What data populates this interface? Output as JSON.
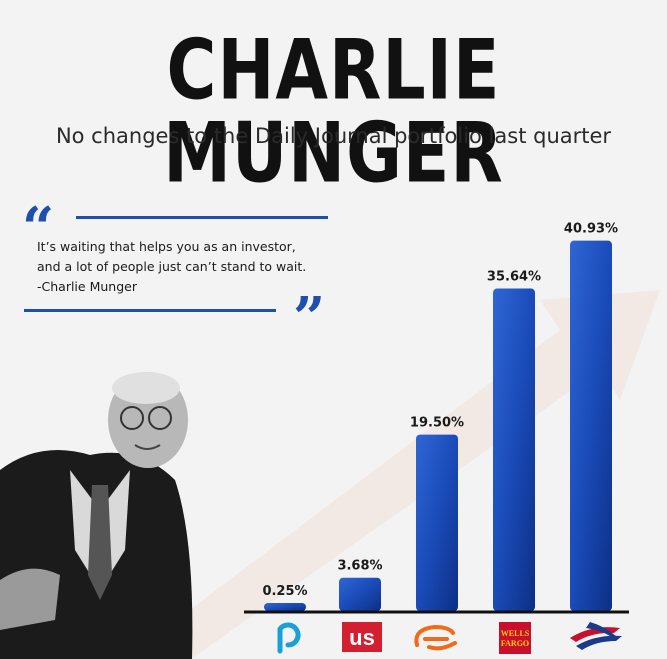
{
  "header": {
    "title": "CHARLIE MUNGER",
    "subtitle": "No changes to the Daily Journal portfolio last quarter"
  },
  "quote": {
    "open_mark": "“",
    "close_mark": "”",
    "lines": [
      "It’s waiting that helps you as an investor,",
      "and a lot of people just can’t stand to wait.",
      "-Charlie Munger"
    ]
  },
  "colors": {
    "accent": "#1e4fb0",
    "bar_dark": "#0d2f85",
    "bar_light": "#2f66d4"
  },
  "chart_data": {
    "type": "bar",
    "categories": [
      "Pacific Health Care",
      "US Bancorp",
      "Alibaba",
      "Wells Fargo",
      "Bank of America"
    ],
    "values": [
      0.25,
      3.68,
      19.5,
      35.64,
      40.93
    ],
    "data_labels": [
      "0.25%",
      "3.68%",
      "19.50%",
      "35.64%",
      "40.93%"
    ],
    "category_icons": [
      "pacific-logo-icon",
      "us-bancorp-logo-icon",
      "alibaba-logo-icon",
      "wells-fargo-logo-icon",
      "bank-of-america-logo-icon"
    ],
    "logo_text": {
      "us_bancorp": "us",
      "wells_fargo_line1": "WELLS",
      "wells_fargo_line2": "FARGO"
    },
    "unit": "%",
    "title": "",
    "xlabel": "",
    "ylabel": "",
    "ylim": [
      0,
      42
    ],
    "grid": false
  }
}
